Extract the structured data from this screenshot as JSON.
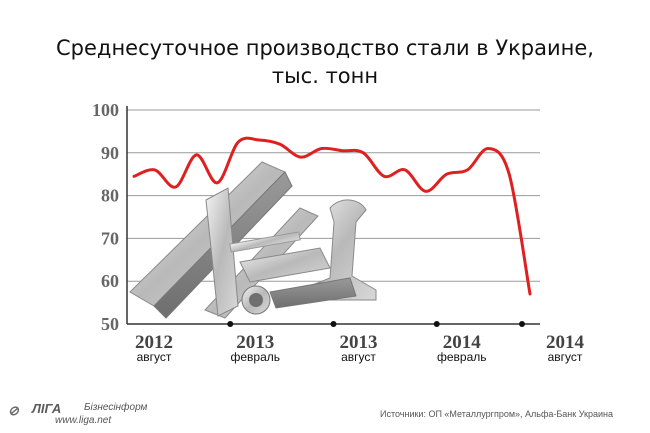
{
  "chart_data": {
    "type": "line",
    "title": [
      "Среднесуточное производство стали в Украине,",
      "тыс. тонн"
    ],
    "ylim": [
      50,
      100
    ],
    "yticks": [
      "50",
      "60",
      "70",
      "80",
      "90",
      "100"
    ],
    "grid": true,
    "line_color": "#e02020",
    "xticks": [
      {
        "year": "2012",
        "month": "август"
      },
      {
        "year": "2013",
        "month": "февраль"
      },
      {
        "year": "2013",
        "month": "август"
      },
      {
        "year": "2014",
        "month": "февраль"
      },
      {
        "year": "2014",
        "month": "август"
      }
    ],
    "series": [
      {
        "values": [
          84.5,
          86,
          82,
          89.5,
          83,
          92.5,
          93,
          92,
          89,
          91,
          90.5,
          90,
          84.5,
          86,
          81,
          85,
          86,
          91,
          85,
          57
        ]
      }
    ]
  },
  "logo": {
    "mark": "⊘",
    "brand": "ЛIГА",
    "subtitle": "Бізнесінформ",
    "url": "www.liga.net"
  },
  "source": "Источники: ОП «Металлургпром», Альфа-Банк Украина"
}
